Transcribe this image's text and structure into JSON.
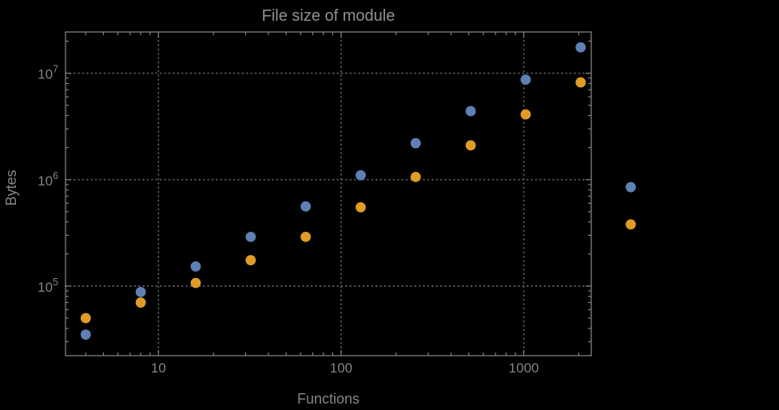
{
  "chart_data": {
    "type": "scatter",
    "title": "File size of module",
    "xlabel": "Functions",
    "ylabel": "Bytes",
    "x_scale": "log",
    "y_scale": "log",
    "xlim": [
      3.1,
      2340
    ],
    "ylim": [
      22200,
      24400000
    ],
    "grid": "dotted-major-gridlines",
    "legend": "none",
    "x_ticks": [
      {
        "value": 10,
        "label": "10"
      },
      {
        "value": 100,
        "label": "100"
      },
      {
        "value": 1000,
        "label": "1000"
      }
    ],
    "y_ticks": [
      {
        "value": 100000,
        "mantissa": "10",
        "exponent": "5"
      },
      {
        "value": 1000000,
        "mantissa": "10",
        "exponent": "6"
      },
      {
        "value": 10000000,
        "mantissa": "10",
        "exponent": "7"
      }
    ],
    "series": [
      {
        "name": "series-1-blue",
        "color": "#5e81b5",
        "points": [
          [
            4,
            35000
          ],
          [
            8,
            88000
          ],
          [
            16,
            153000
          ],
          [
            32,
            290000
          ],
          [
            64,
            560000
          ],
          [
            128,
            1100000
          ],
          [
            256,
            2200000
          ],
          [
            512,
            4400000
          ],
          [
            1024,
            8700000
          ],
          [
            2048,
            17500000
          ],
          [
            3850,
            850000
          ]
        ]
      },
      {
        "name": "series-2-orange",
        "color": "#e09c24",
        "points": [
          [
            4,
            50000
          ],
          [
            8,
            70000
          ],
          [
            16,
            107000
          ],
          [
            32,
            175000
          ],
          [
            64,
            290000
          ],
          [
            128,
            550000
          ],
          [
            256,
            1060000
          ],
          [
            512,
            2100000
          ],
          [
            1024,
            4100000
          ],
          [
            2048,
            8200000
          ],
          [
            3850,
            380000
          ]
        ]
      }
    ],
    "colors": {
      "background": "#000000",
      "frame": "#8a8a8a",
      "gridline": "#5e5e5e",
      "title_text": "#909090",
      "axis_label_text": "#868686",
      "tick_label_text": "#848484"
    }
  }
}
